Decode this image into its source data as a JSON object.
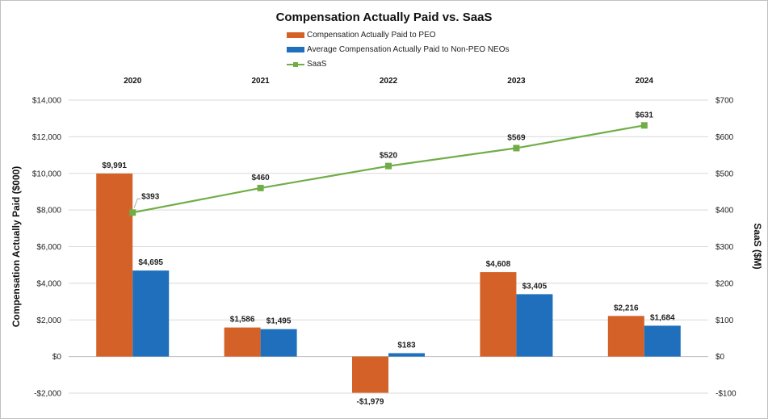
{
  "chart_data": {
    "type": "bar",
    "title": "Compensation Actually Paid vs. SaaS",
    "categories": [
      "2020",
      "2021",
      "2022",
      "2023",
      "2024"
    ],
    "series": [
      {
        "name": "Compensation Actually Paid to PEO",
        "values": [
          9991,
          1586,
          -1979,
          4608,
          2216
        ],
        "labels": [
          "$9,991",
          "$1,586",
          "-$1,979",
          "$4,608",
          "$2,216"
        ],
        "color": "#d46228",
        "axis": "left",
        "kind": "bar"
      },
      {
        "name": "Average Compensation Actually Paid to Non-PEO NEOs",
        "values": [
          4695,
          1495,
          183,
          3405,
          1684
        ],
        "labels": [
          "$4,695",
          "$1,495",
          "$183",
          "$3,405",
          "$1,684"
        ],
        "color": "#1f6fbd",
        "axis": "left",
        "kind": "bar"
      },
      {
        "name": "SaaS",
        "values": [
          393,
          460,
          520,
          569,
          631
        ],
        "labels": [
          "$393",
          "$460",
          "$520",
          "$569",
          "$631"
        ],
        "color": "#70ad47",
        "axis": "right",
        "kind": "line"
      }
    ],
    "ylabel": "Compensation Actually Paid ($000)",
    "ylabel_right": "SaaS ($M)",
    "ylim": [
      -2000,
      14000
    ],
    "ylim_right": [
      -100,
      700
    ],
    "yticks": [
      -2000,
      0,
      2000,
      4000,
      6000,
      8000,
      10000,
      12000,
      14000
    ],
    "ytick_labels": [
      "-$2,000",
      "$0",
      "$2,000",
      "$4,000",
      "$6,000",
      "$8,000",
      "$10,000",
      "$12,000",
      "$14,000"
    ],
    "yticks_right": [
      -100,
      0,
      100,
      200,
      300,
      400,
      500,
      600,
      700
    ],
    "ytick_labels_right": [
      "-$100",
      "$0",
      "$100",
      "$200",
      "$300",
      "$400",
      "$500",
      "$600",
      "$700"
    ],
    "grid": true,
    "legend_position": "top",
    "category_axis_position": "top"
  }
}
